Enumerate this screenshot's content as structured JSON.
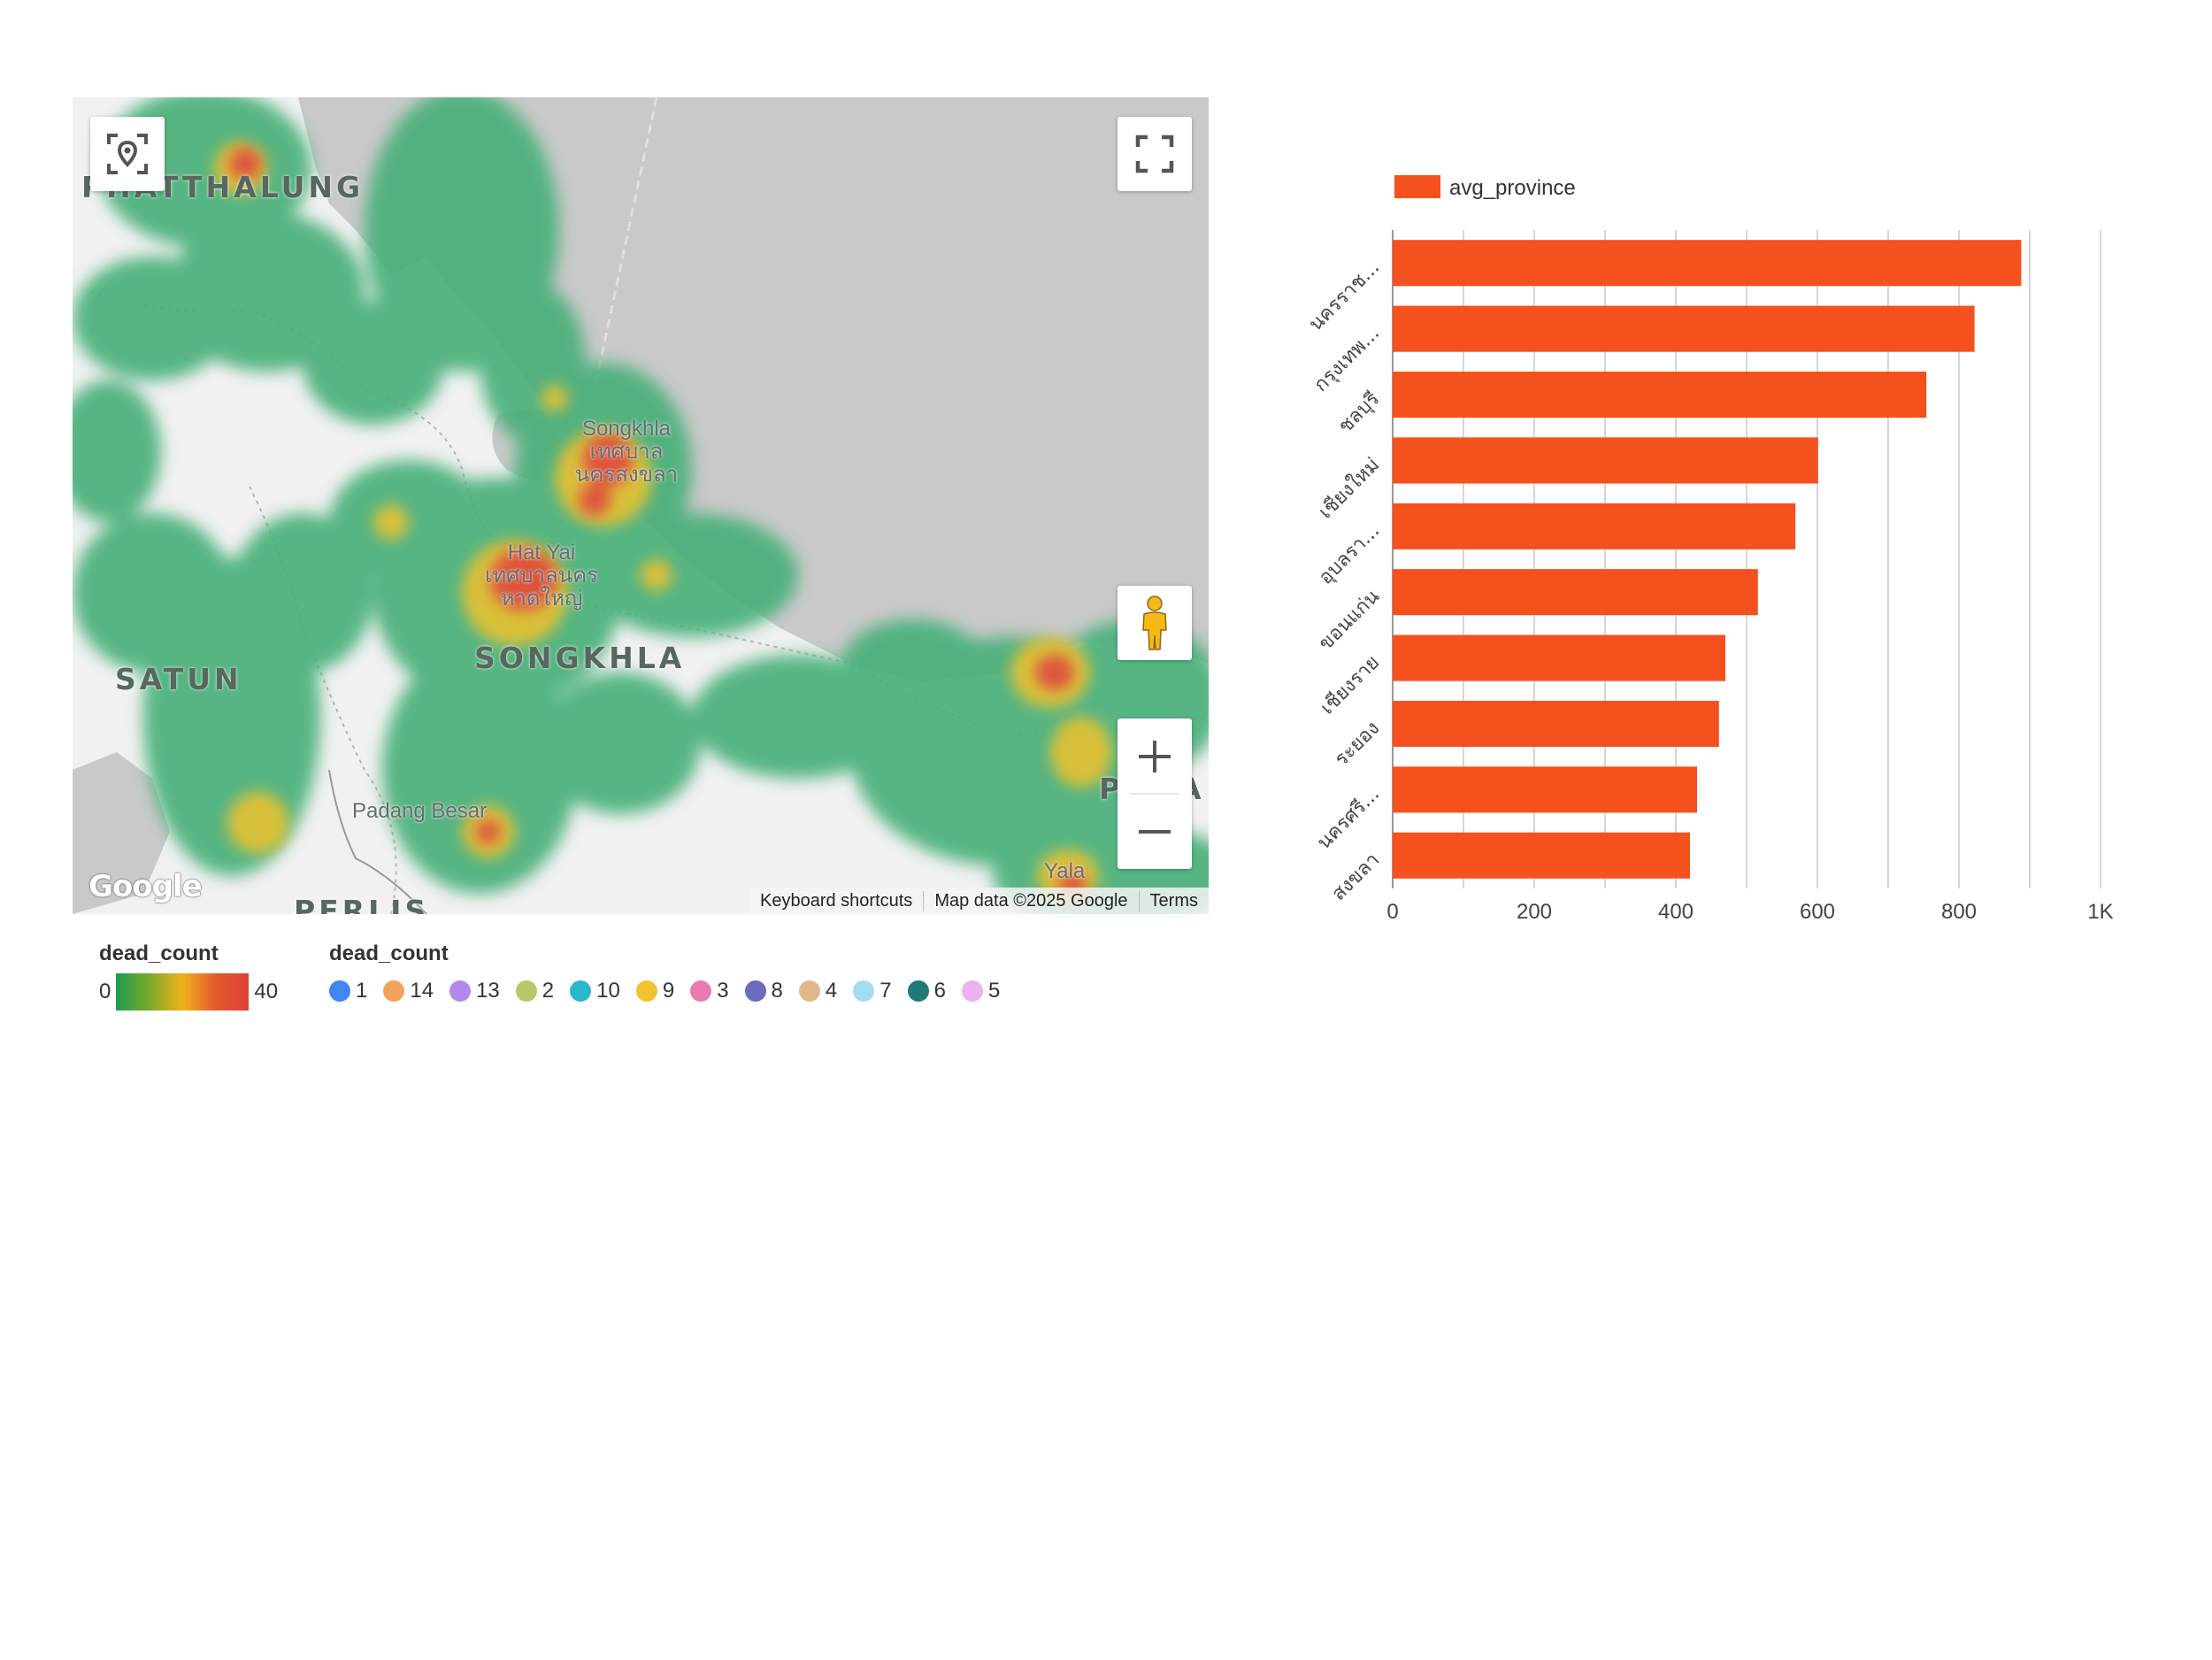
{
  "map": {
    "place_labels": {
      "phatthalung": "PHATTHALUNG",
      "satun": "SATUN",
      "songkhla": "SONGKHLA",
      "perlis": "PERLIS",
      "pattani": "PA",
      "pattani_tail": "TTA",
      "pa_prefix": "P"
    },
    "city_labels": {
      "songkhla_city": "Songkhla",
      "songkhla_thai_1": "เทศบาล",
      "songkhla_thai_2": "นครสงขลา",
      "hatyai": "Hat Yai",
      "hatyai_thai_1": "เทศบาลนคร",
      "hatyai_thai_2": "หาดใหญ่",
      "padang": "Padang Besar",
      "yala": "Yala"
    },
    "google_logo": "Google",
    "attribution": {
      "keyboard": "Keyboard shortcuts",
      "mapdata": "Map data ©2025 Google",
      "terms": "Terms"
    },
    "icons": {
      "locate": "locate-icon",
      "fullscreen": "fullscreen-icon",
      "pegman": "pegman-icon",
      "zoom_in": "plus-icon",
      "zoom_out": "minus-icon"
    }
  },
  "legend": {
    "gradient": {
      "title": "dead_count",
      "min": "0",
      "max": "40",
      "colors": [
        "#1e9c52",
        "#f0b31a",
        "#e0403a"
      ]
    },
    "categories": {
      "title": "dead_count",
      "items": [
        {
          "label": "1",
          "color": "#4285f4"
        },
        {
          "label": "14",
          "color": "#f4a259"
        },
        {
          "label": "13",
          "color": "#b388eb"
        },
        {
          "label": "2",
          "color": "#b5c96a"
        },
        {
          "label": "10",
          "color": "#2bb7c8"
        },
        {
          "label": "9",
          "color": "#f2c230"
        },
        {
          "label": "3",
          "color": "#ea7bb0"
        },
        {
          "label": "8",
          "color": "#6b6bbd"
        },
        {
          "label": "4",
          "color": "#e0b98a"
        },
        {
          "label": "7",
          "color": "#a6dcf2"
        },
        {
          "label": "6",
          "color": "#1f7a7a"
        },
        {
          "label": "5",
          "color": "#eab3f0"
        }
      ]
    }
  },
  "chart_data": {
    "type": "bar",
    "orientation": "horizontal",
    "categories": [
      "นครราช...",
      "กรุงเทพ...",
      "ชลบุรี",
      "เชียงใหม่",
      "อุบลรา...",
      "ขอนแก่น",
      "เชียงราย",
      "ระยอง",
      "นครศรี...",
      "สงขลา"
    ],
    "series": [
      {
        "name": "avg_province",
        "color": "#f4511e",
        "values": [
          888,
          822,
          754,
          601,
          569,
          516,
          470,
          461,
          430,
          420
        ]
      }
    ],
    "xlim": [
      0,
      1000
    ],
    "xticks": [
      "0",
      "200",
      "400",
      "600",
      "800",
      "1K"
    ],
    "grid": true,
    "legend_position": "top-left"
  }
}
